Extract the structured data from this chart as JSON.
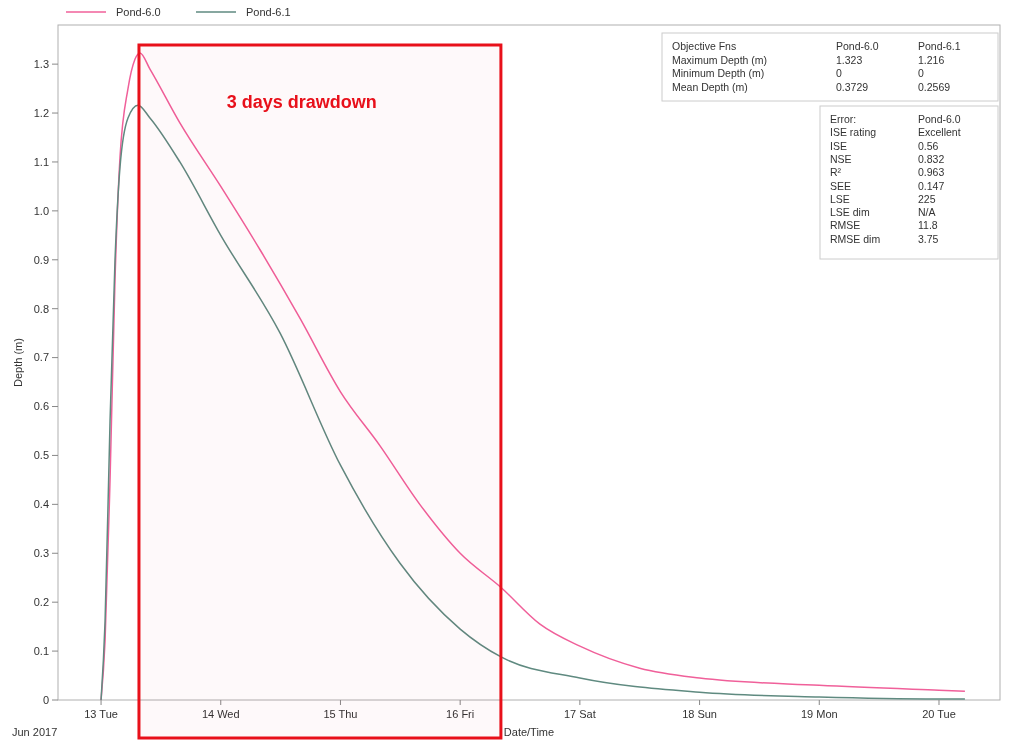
{
  "chart_data": {
    "type": "line",
    "xlabel": "Date/Time",
    "ylabel": "Depth (m)",
    "xlim": [
      "2017-06-12T15:22",
      "2017-06-20T12:14"
    ],
    "xticks": [
      {
        "value": "2017-06-13",
        "label": "13 Tue"
      },
      {
        "value": "2017-06-14",
        "label": "14 Wed"
      },
      {
        "value": "2017-06-15",
        "label": "15 Thu"
      },
      {
        "value": "2017-06-16",
        "label": "16 Fri"
      },
      {
        "value": "2017-06-17",
        "label": "17 Sat"
      },
      {
        "value": "2017-06-18",
        "label": "18 Sun"
      },
      {
        "value": "2017-06-19",
        "label": "19 Mon"
      },
      {
        "value": "2017-06-20",
        "label": "20 Tue"
      }
    ],
    "ylim": [
      0,
      1.38
    ],
    "yticks": [
      0,
      0.1,
      0.2,
      0.3,
      0.4,
      0.5,
      0.6,
      0.7,
      0.8,
      0.9,
      {
        "value": 1,
        "label": "1.0"
      },
      1.1,
      1.2,
      1.3
    ],
    "grid": false,
    "legend": "top left",
    "marker": "none",
    "line_style": "solid",
    "series": [
      {
        "name": "Pond-6.0",
        "color": "#f0609a",
        "x": [
          "2017-06-13T00:00",
          "2017-06-13T00:48",
          "2017-06-13T01:48",
          "2017-06-13T02:48",
          "2017-06-13T03:48",
          "2017-06-13T05:24",
          "2017-06-13T06:48",
          "2017-06-13T07:48",
          "2017-06-13T09:48",
          "2017-06-13T15:48",
          "2017-06-14T00:00",
          "2017-06-14T07:54",
          "2017-06-14T15:54",
          "2017-06-15T00:00",
          "2017-06-15T07:54",
          "2017-06-15T15:54",
          "2017-06-16T00:00",
          "2017-06-16T08:12",
          "2017-06-16T16:00",
          "2017-06-17T00:00",
          "2017-06-17T12:00",
          "2017-06-18T00:00",
          "2017-06-19T00:00",
          "2017-06-20T00:00",
          "2017-06-20T05:12"
        ],
        "values": [
          0,
          0.12,
          0.45,
          0.86,
          1.11,
          1.25,
          1.31,
          1.323,
          1.29,
          1.18,
          1.05,
          0.92,
          0.78,
          0.63,
          0.52,
          0.4,
          0.3,
          0.23,
          0.155,
          0.11,
          0.065,
          0.045,
          0.03,
          0.02,
          0.018
        ]
      },
      {
        "name": "Pond-6.1",
        "color": "#5f8a80",
        "x": [
          "2017-06-13T00:00",
          "2017-06-13T00:48",
          "2017-06-13T01:48",
          "2017-06-13T02:48",
          "2017-06-13T03:48",
          "2017-06-13T05:24",
          "2017-06-13T07:24",
          "2017-06-13T09:48",
          "2017-06-13T15:48",
          "2017-06-14T00:00",
          "2017-06-14T11:54",
          "2017-06-15T00:00",
          "2017-06-15T11:54",
          "2017-06-16T00:00",
          "2017-06-16T08:12",
          "2017-06-17T00:00",
          "2017-06-18T00:00",
          "2017-06-19T00:00",
          "2017-06-20T00:00",
          "2017-06-20T05:12"
        ],
        "values": [
          0,
          0.16,
          0.57,
          0.9,
          1.09,
          1.19,
          1.216,
          1.19,
          1.1,
          0.95,
          0.75,
          0.48,
          0.28,
          0.145,
          0.088,
          0.045,
          0.016,
          0.006,
          0.002,
          0.002
        ]
      }
    ],
    "bands": [
      {
        "axis": "x",
        "from": "2017-06-13T07:36",
        "to": "2017-06-16T08:10",
        "label": "3 days drawdown",
        "color": "#e8101a"
      }
    ],
    "annotations": [
      "Jun 2017",
      "Objective Fns",
      "Pond-6.0",
      "Pond-6.1",
      "Maximum Depth (m)",
      "1.323",
      "1.216",
      "Minimum Depth (m)",
      "0",
      "0",
      "Mean Depth (m)",
      "0.3729",
      "0.2569",
      "Error:",
      "Pond-6.0",
      "ISE rating",
      "Excellent",
      "ISE",
      "0.56",
      "NSE",
      "0.832",
      "R²",
      "0.963",
      "SEE",
      "0.147",
      "LSE",
      "225",
      "LSE dim",
      "N/A",
      "RMSE",
      "11.8",
      "RMSE dim",
      "3.75"
    ]
  }
}
